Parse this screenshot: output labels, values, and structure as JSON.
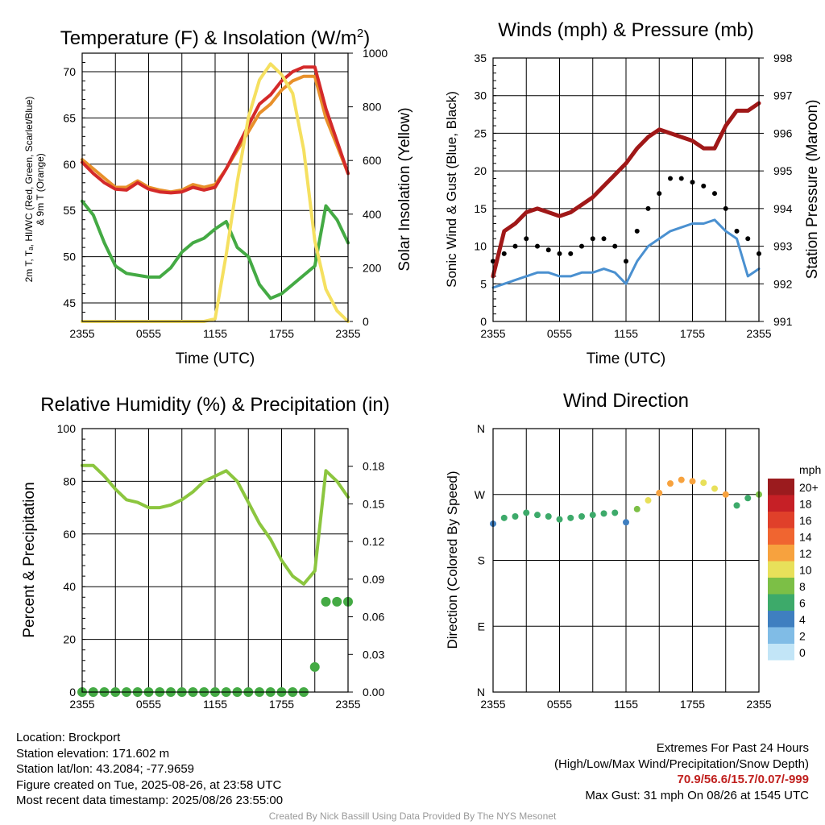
{
  "chart_data": [
    {
      "type": "line",
      "title": "Temperature (F) & Insolation (W/m²)",
      "xlabel": "Time (UTC)",
      "ylabel": "2m T, Tₐ, HI/WC (Red, Green, Scarlet/Blue) & 9m T (Orange)",
      "ylabel_right": "Solar Insolation (Yellow)",
      "x_ticks": [
        "2355",
        "0555",
        "1155",
        "1755",
        "2355"
      ],
      "ylim": [
        43,
        72
      ],
      "y_ticks": [
        45,
        50,
        55,
        60,
        65,
        70
      ],
      "ylim_right": [
        0,
        1000
      ],
      "y_ticks_right": [
        0,
        200,
        400,
        600,
        800,
        1000
      ],
      "x_hours": [
        0,
        1,
        2,
        3,
        4,
        5,
        6,
        7,
        8,
        9,
        10,
        11,
        12,
        13,
        14,
        15,
        16,
        17,
        18,
        19,
        20,
        21,
        22,
        23,
        24
      ],
      "series": [
        {
          "color": "#e8902a",
          "axis": "left",
          "values": [
            60.5,
            59.5,
            58.5,
            57.5,
            57.5,
            58.2,
            57.5,
            57.2,
            57.0,
            57.2,
            57.8,
            57.5,
            57.8,
            59.5,
            61.5,
            63.5,
            65.5,
            66.5,
            68,
            69,
            69.5,
            69.5,
            65,
            62,
            59
          ]
        },
        {
          "color": "#d42a2a",
          "axis": "left",
          "values": [
            60.2,
            59,
            58,
            57.3,
            57.2,
            58.0,
            57.3,
            57.0,
            56.9,
            57.0,
            57.5,
            57.2,
            57.5,
            59.5,
            61.8,
            64.2,
            66.5,
            67.5,
            69,
            70,
            70.5,
            70.5,
            66,
            62.5,
            59
          ]
        },
        {
          "color": "#44aa44",
          "axis": "left",
          "values": [
            56,
            54.5,
            51.5,
            49,
            48.2,
            48.0,
            47.8,
            47.8,
            48.8,
            50.5,
            51.5,
            52.0,
            53.0,
            53.8,
            51.0,
            50.0,
            47.0,
            45.5,
            46,
            47,
            48,
            49,
            55.5,
            54,
            51.5
          ]
        },
        {
          "color": "#f5e060",
          "axis": "right",
          "values": [
            0,
            0,
            0,
            0,
            0,
            0,
            0,
            0,
            0,
            0,
            0,
            0,
            10,
            250,
            520,
            760,
            900,
            960,
            920,
            850,
            640,
            300,
            120,
            40,
            0
          ]
        }
      ]
    },
    {
      "type": "line",
      "title": "Winds (mph) & Pressure (mb)",
      "xlabel": "Time (UTC)",
      "ylabel": "Sonic Wind & Gust (Blue, Black)",
      "ylabel_right": "Station Pressure (Maroon)",
      "x_ticks": [
        "2355",
        "0555",
        "1155",
        "1755",
        "2355"
      ],
      "ylim": [
        0,
        35
      ],
      "y_ticks": [
        0,
        5,
        10,
        15,
        20,
        25,
        30,
        35
      ],
      "ylim_right": [
        991,
        998
      ],
      "y_ticks_right": [
        991,
        992,
        993,
        994,
        995,
        996,
        997,
        998
      ],
      "x_hours": [
        0,
        1,
        2,
        3,
        4,
        5,
        6,
        7,
        8,
        9,
        10,
        11,
        12,
        13,
        14,
        15,
        16,
        17,
        18,
        19,
        20,
        21,
        22,
        23,
        24
      ],
      "series": [
        {
          "color": "#4a90d0",
          "axis": "left",
          "values": [
            4.5,
            5,
            5.5,
            6,
            6.5,
            6.5,
            6,
            6,
            6.5,
            6.5,
            7,
            6.5,
            5,
            8,
            10,
            11,
            12,
            12.5,
            13,
            13,
            13.5,
            12,
            11,
            6,
            7
          ]
        },
        {
          "color": "#000000",
          "axis": "left",
          "marker": "dot",
          "values": [
            8,
            9,
            10,
            11,
            10,
            9.5,
            9,
            9,
            10,
            11,
            11,
            10,
            8,
            12,
            15,
            17,
            19,
            19,
            18.5,
            18,
            17,
            15,
            12,
            11,
            9
          ]
        },
        {
          "color": "#a01818",
          "axis": "right",
          "values": [
            992.2,
            993.4,
            993.6,
            993.9,
            994.0,
            993.9,
            993.8,
            993.9,
            994.1,
            994.3,
            994.6,
            994.9,
            995.2,
            995.6,
            995.9,
            996.1,
            996.0,
            995.9,
            995.8,
            995.6,
            995.6,
            996.2,
            996.6,
            996.6,
            996.8
          ]
        }
      ]
    },
    {
      "type": "line",
      "title": "Relative Humidity (%) & Precipitation (in)",
      "ylabel": "Percent & Precipitation",
      "x_ticks": [
        "2355",
        "0555",
        "1155",
        "1755",
        "2355"
      ],
      "ylim": [
        0,
        100
      ],
      "y_ticks": [
        0,
        20,
        40,
        60,
        80,
        100
      ],
      "ylim_right": [
        0,
        0.21
      ],
      "y_ticks_right": [
        "0.00",
        "0.03",
        "0.06",
        "0.09",
        "0.12",
        "0.15",
        "0.18"
      ],
      "x_hours": [
        0,
        1,
        2,
        3,
        4,
        5,
        6,
        7,
        8,
        9,
        10,
        11,
        12,
        13,
        14,
        15,
        16,
        17,
        18,
        19,
        20,
        21,
        22,
        23,
        24
      ],
      "series": [
        {
          "color": "#8cc63f",
          "axis": "left",
          "values": [
            86,
            86,
            82,
            77,
            73,
            72,
            70,
            70,
            71,
            73,
            76,
            80,
            82,
            84,
            80,
            72,
            64,
            58,
            50,
            44,
            41,
            46,
            84,
            80,
            74
          ]
        },
        {
          "color": "#44aa44",
          "axis": "right",
          "marker": "dot",
          "values": [
            0,
            0,
            0,
            0,
            0,
            0,
            0,
            0,
            0,
            0,
            0,
            0,
            0,
            0,
            0,
            0,
            0,
            0,
            0,
            0,
            0,
            0.02,
            0.072,
            0.072,
            0.072
          ]
        }
      ]
    },
    {
      "type": "scatter",
      "title": "Wind Direction",
      "ylabel": "Direction (Colored By Speed)",
      "x_ticks": [
        "2355",
        "0555",
        "1155",
        "1755",
        "2355"
      ],
      "y_ticks": [
        "N",
        "E",
        "S",
        "W",
        "N"
      ],
      "ylim": [
        0,
        360
      ],
      "x_hours": [
        0,
        1,
        2,
        3,
        4,
        5,
        6,
        7,
        8,
        9,
        10,
        11,
        12,
        13,
        14,
        15,
        16,
        17,
        18,
        19,
        20,
        21,
        22,
        23,
        24
      ],
      "values": [
        230,
        238,
        240,
        245,
        242,
        240,
        236,
        238,
        240,
        242,
        244,
        245,
        232,
        250,
        262,
        272,
        285,
        290,
        288,
        286,
        278,
        270,
        255,
        265,
        270
      ],
      "speeds": [
        4,
        5,
        6,
        6,
        6,
        6,
        6,
        6,
        6,
        6,
        6,
        6,
        4,
        7,
        9,
        11,
        12,
        12,
        11,
        10,
        9,
        12,
        6,
        6,
        7
      ],
      "legend_title": "mph",
      "legend": [
        {
          "label": "20+",
          "color": "#9b1b1e"
        },
        {
          "label": "18",
          "color": "#c62026"
        },
        {
          "label": "16",
          "color": "#e0402a"
        },
        {
          "label": "14",
          "color": "#f06530"
        },
        {
          "label": "12",
          "color": "#f7a23e"
        },
        {
          "label": "10",
          "color": "#e8e05a"
        },
        {
          "label": "8",
          "color": "#7cbf46"
        },
        {
          "label": "6",
          "color": "#3daa6a"
        },
        {
          "label": "4",
          "color": "#3f7fc0"
        },
        {
          "label": "2",
          "color": "#80bce6"
        },
        {
          "label": "0",
          "color": "#c2e5f7"
        }
      ]
    }
  ],
  "info": {
    "location": "Location: Brockport",
    "elevation": "Station elevation: 171.602 m",
    "latlon": "Station lat/lon: 43.2084; -77.9659",
    "created": "Figure created on Tue, 2025-08-26, at 23:58 UTC",
    "recent": "Most recent data timestamp: 2025/08/26 23:55:00"
  },
  "extremes": {
    "title": "Extremes For Past 24 Hours",
    "subtitle": "(High/Low/Max Wind/Precipitation/Snow Depth)",
    "values": "70.9/56.6/15.7/0.07/-999",
    "gust": "Max Gust: 31 mph On 08/26 at 1545 UTC"
  },
  "credit": "Created By Nick Bassill Using Data Provided By The NYS Mesonet"
}
